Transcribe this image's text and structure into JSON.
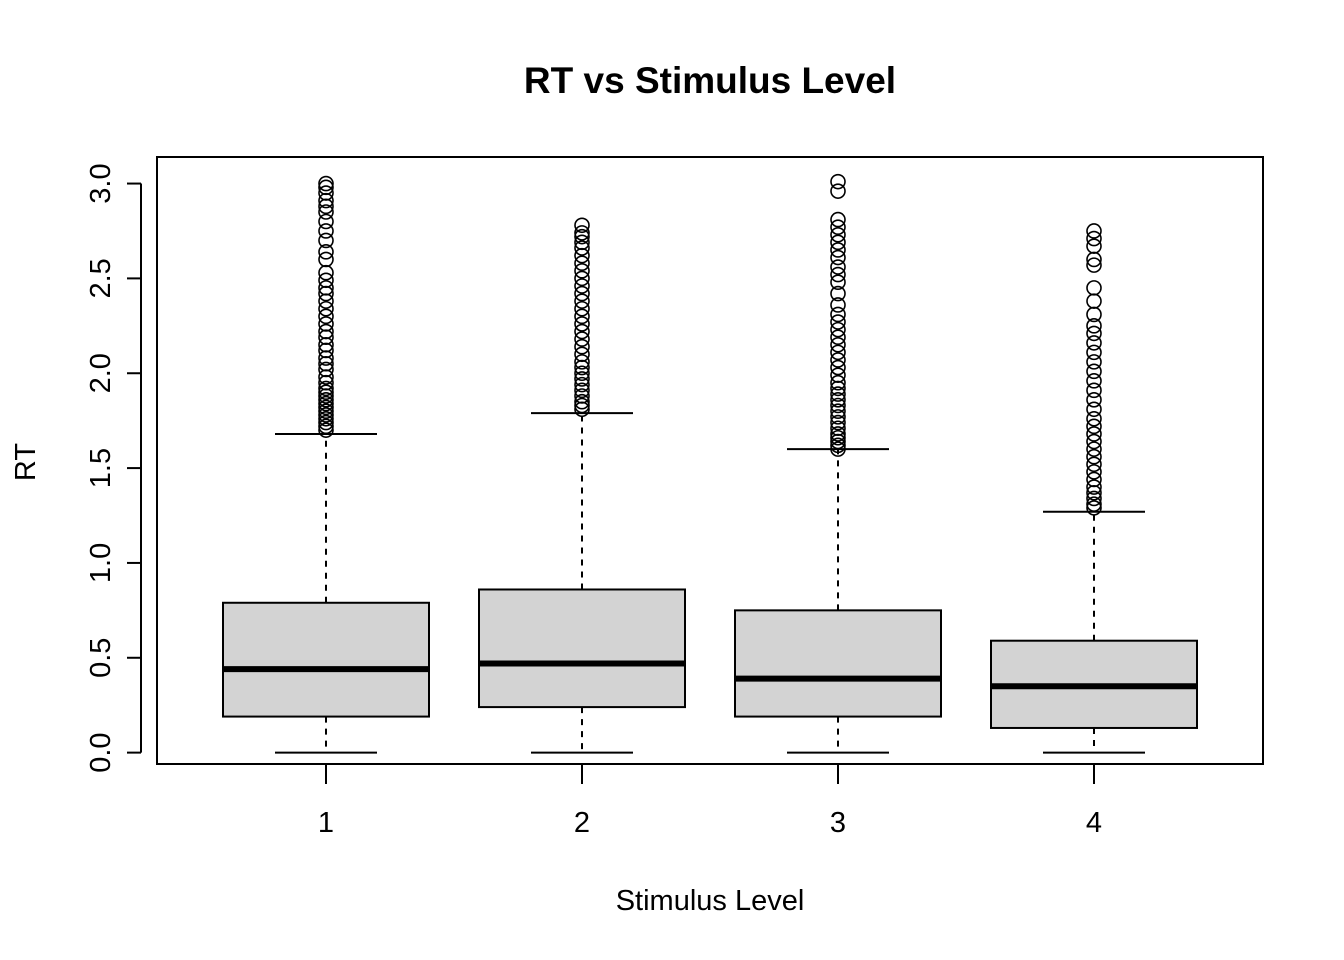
{
  "chart_data": {
    "type": "boxplot",
    "title": "RT vs Stimulus Level",
    "xlabel": "Stimulus Level",
    "ylabel": "RT",
    "ylim": [
      -0.06,
      3.14
    ],
    "y_ticks": [
      "0.0",
      "0.5",
      "1.0",
      "1.5",
      "2.0",
      "2.5",
      "3.0"
    ],
    "y_tick_values": [
      0.0,
      0.5,
      1.0,
      1.5,
      2.0,
      2.5,
      3.0
    ],
    "categories": [
      "1",
      "2",
      "3",
      "4"
    ],
    "box_fill": "#d3d3d3",
    "line_color": "#000000",
    "boxes": [
      {
        "category": "1",
        "whisker_low": 0.0,
        "q1": 0.19,
        "median": 0.44,
        "q3": 0.79,
        "whisker_high": 1.68,
        "outliers": [
          1.7,
          1.72,
          1.74,
          1.76,
          1.78,
          1.8,
          1.82,
          1.84,
          1.86,
          1.88,
          1.9,
          1.92,
          1.95,
          1.98,
          2.02,
          2.05,
          2.08,
          2.12,
          2.15,
          2.19,
          2.22,
          2.26,
          2.3,
          2.34,
          2.38,
          2.42,
          2.45,
          2.49,
          2.53,
          2.6,
          2.64,
          2.7,
          2.75,
          2.8,
          2.85,
          2.88,
          2.91,
          2.95,
          2.98,
          3.0
        ]
      },
      {
        "category": "2",
        "whisker_low": 0.0,
        "q1": 0.24,
        "median": 0.47,
        "q3": 0.86,
        "whisker_high": 1.79,
        "outliers": [
          1.81,
          1.83,
          1.85,
          1.88,
          1.91,
          1.94,
          1.97,
          2.0,
          2.03,
          2.06,
          2.1,
          2.14,
          2.18,
          2.22,
          2.26,
          2.3,
          2.34,
          2.38,
          2.42,
          2.46,
          2.5,
          2.54,
          2.58,
          2.62,
          2.66,
          2.69,
          2.72,
          2.74,
          2.78
        ]
      },
      {
        "category": "3",
        "whisker_low": 0.0,
        "q1": 0.19,
        "median": 0.39,
        "q3": 0.75,
        "whisker_high": 1.6,
        "outliers": [
          1.6,
          1.62,
          1.64,
          1.66,
          1.68,
          1.71,
          1.74,
          1.77,
          1.8,
          1.83,
          1.86,
          1.89,
          1.92,
          1.95,
          1.99,
          2.03,
          2.07,
          2.11,
          2.15,
          2.19,
          2.23,
          2.27,
          2.31,
          2.36,
          2.42,
          2.48,
          2.52,
          2.56,
          2.61,
          2.65,
          2.69,
          2.73,
          2.77,
          2.81,
          2.96,
          3.01
        ]
      },
      {
        "category": "4",
        "whisker_low": 0.0,
        "q1": 0.13,
        "median": 0.35,
        "q3": 0.59,
        "whisker_high": 1.27,
        "outliers": [
          1.29,
          1.31,
          1.34,
          1.37,
          1.4,
          1.44,
          1.48,
          1.52,
          1.56,
          1.6,
          1.64,
          1.68,
          1.72,
          1.76,
          1.81,
          1.86,
          1.91,
          1.96,
          2.01,
          2.06,
          2.11,
          2.16,
          2.21,
          2.25,
          2.31,
          2.38,
          2.45,
          2.57,
          2.6,
          2.67,
          2.71,
          2.75
        ]
      }
    ]
  }
}
